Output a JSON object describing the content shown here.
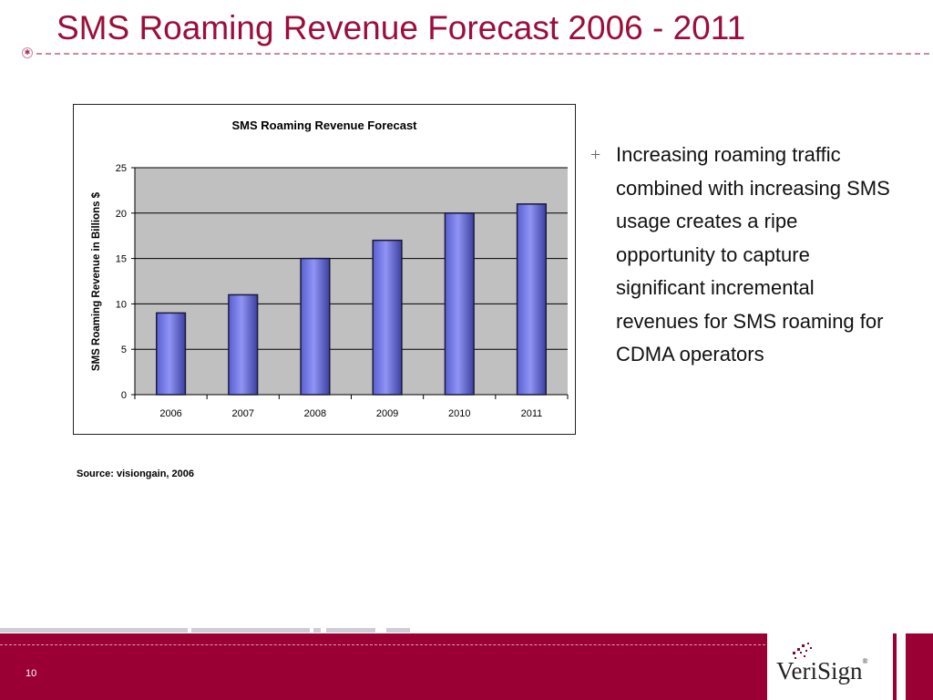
{
  "slide": {
    "title": "SMS Roaming Revenue Forecast 2006 - 2011",
    "source": "Source: visiongain, 2006",
    "page_number": "10",
    "logo": "VeriSign",
    "logo_reg": "®"
  },
  "bullets": [
    "Increasing roaming traffic combined with increasing SMS usage creates a ripe opportunity to capture significant incremental revenues for SMS roaming for CDMA operators"
  ],
  "bullet_marker": "+",
  "colors": {
    "accent": "#9b0e3c",
    "footer": "#9b0035",
    "plot_bg": "#c0c0c0",
    "bar_fill": "#8f94f5",
    "bar_stroke": "#1a1a3a"
  },
  "chart_data": {
    "type": "bar",
    "title": "SMS Roaming Revenue Forecast",
    "xlabel": "",
    "ylabel": "SMS Roaming Revenue in Billions $",
    "categories": [
      "2006",
      "2007",
      "2008",
      "2009",
      "2010",
      "2011"
    ],
    "values": [
      9,
      11,
      15,
      17,
      20,
      21
    ],
    "ylim": [
      0,
      25
    ],
    "yticks": [
      0,
      5,
      10,
      15,
      20,
      25
    ],
    "grid": true,
    "legend": "none"
  }
}
